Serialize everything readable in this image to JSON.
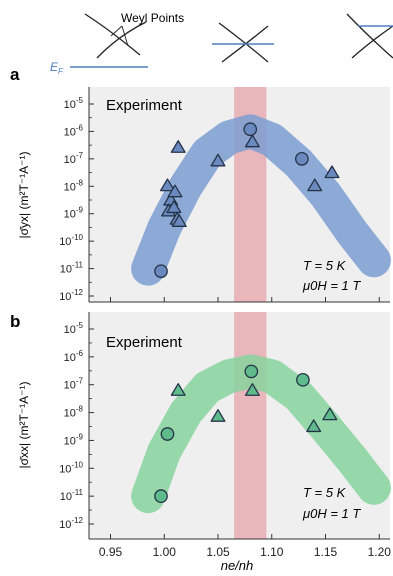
{
  "schematic": {
    "label": "Weyl Points",
    "fermi_label": "E",
    "fermi_sub": "F"
  },
  "chart_data": [
    {
      "panel_label": "a",
      "type": "scatter",
      "annotation": "Experiment",
      "param_T": "T = 5 K",
      "param_H": "μ0H = 1 T",
      "ylabel": "|σ̄yx| (m²T⁻¹A⁻¹)",
      "y_scale": "log",
      "xlim": [
        0.93,
        1.21
      ],
      "ylim": [
        1e-12,
        1e-05
      ],
      "x_ticks": [
        0.95,
        1.0,
        1.05,
        1.1,
        1.15,
        1.2
      ],
      "y_tick_exponents": [
        -5,
        -6,
        -7,
        -8,
        -9,
        -10,
        -11,
        -12
      ],
      "band_color": "#7b9ed1",
      "marker_color": "#6a89bf",
      "highlight": {
        "x_center": 1.08,
        "x_width": 0.03,
        "color": "#e7a3a9"
      },
      "series": [
        {
          "marker": "circle",
          "points": [
            [
              0.997,
              8e-12
            ],
            [
              1.08,
              1.2e-06
            ],
            [
              1.128,
              1e-07
            ]
          ]
        },
        {
          "marker": "triangle",
          "points": [
            [
              1.003,
              1e-08
            ],
            [
              1.006,
              3e-09
            ],
            [
              1.004,
              1.2e-09
            ],
            [
              1.009,
              1.6e-09
            ],
            [
              1.01,
              6e-09
            ],
            [
              1.012,
              6e-10
            ],
            [
              1.014,
              5e-10
            ],
            [
              1.013,
              2.5e-07
            ],
            [
              1.05,
              8e-08
            ],
            [
              1.082,
              4e-07
            ],
            [
              1.14,
              1e-08
            ],
            [
              1.156,
              3e-08
            ]
          ]
        }
      ],
      "band": [
        [
          0.985,
          1e-11
        ],
        [
          1.0,
          3e-10
        ],
        [
          1.02,
          1e-08
        ],
        [
          1.04,
          1.6e-07
        ],
        [
          1.06,
          6e-07
        ],
        [
          1.08,
          1e-06
        ],
        [
          1.1,
          5e-07
        ],
        [
          1.125,
          7e-08
        ],
        [
          1.15,
          5e-09
        ],
        [
          1.175,
          2e-10
        ],
        [
          1.195,
          2e-11
        ]
      ]
    },
    {
      "panel_label": "b",
      "type": "scatter",
      "annotation": "Experiment",
      "param_T": "T = 5 K",
      "param_H": "μ0H = 1 T",
      "ylabel": "|σ̄xx| (m²T⁻¹A⁻¹)",
      "xlabel": "ne/nh",
      "y_scale": "log",
      "xlim": [
        0.93,
        1.21
      ],
      "ylim": [
        1e-12,
        1e-05
      ],
      "x_ticks": [
        0.95,
        1.0,
        1.05,
        1.1,
        1.15,
        1.2
      ],
      "x_tick_labels": [
        "0.95",
        "1.00",
        "1.05",
        "1.10",
        "1.15",
        "1.20"
      ],
      "y_tick_exponents": [
        -5,
        -6,
        -7,
        -8,
        -9,
        -10,
        -11,
        -12
      ],
      "band_color": "#86d39e",
      "marker_color": "#5fbb8c",
      "highlight": {
        "x_center": 1.08,
        "x_width": 0.03,
        "color": "#e7a3a9"
      },
      "series": [
        {
          "marker": "circle",
          "points": [
            [
              0.997,
              1e-11
            ],
            [
              1.003,
              1.7e-09
            ],
            [
              1.081,
              3e-07
            ],
            [
              1.129,
              1.5e-07
            ]
          ]
        },
        {
          "marker": "triangle",
          "points": [
            [
              1.013,
              6e-08
            ],
            [
              1.05,
              7e-09
            ],
            [
              1.082,
              6e-08
            ],
            [
              1.139,
              3e-09
            ],
            [
              1.154,
              8e-09
            ]
          ]
        }
      ],
      "band": [
        [
          0.985,
          1e-11
        ],
        [
          1.0,
          4e-10
        ],
        [
          1.02,
          1e-08
        ],
        [
          1.04,
          8e-08
        ],
        [
          1.06,
          2e-07
        ],
        [
          1.08,
          3e-07
        ],
        [
          1.1,
          2e-07
        ],
        [
          1.125,
          4e-08
        ],
        [
          1.15,
          3e-09
        ],
        [
          1.175,
          2e-10
        ],
        [
          1.195,
          2e-11
        ]
      ]
    }
  ]
}
